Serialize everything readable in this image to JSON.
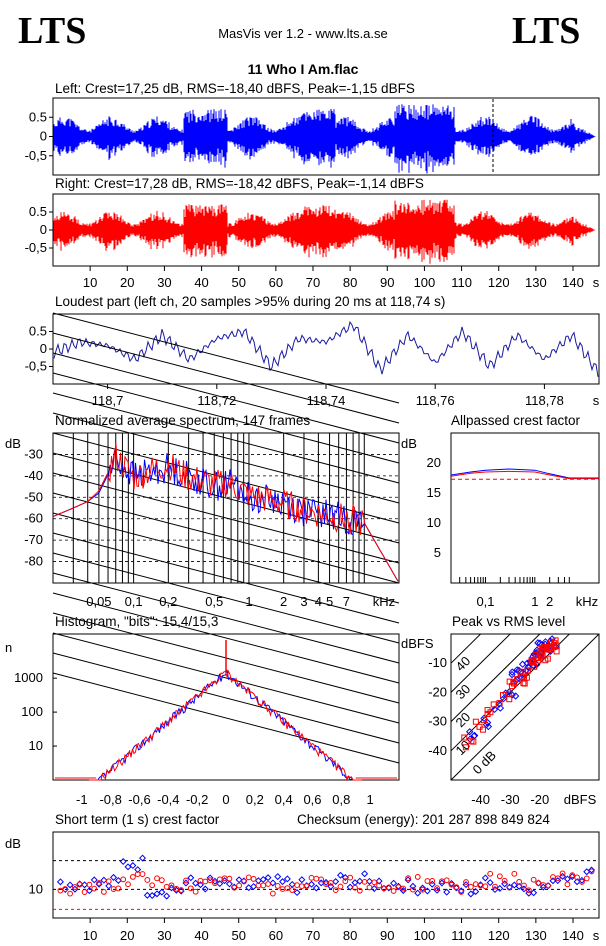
{
  "header": {
    "brand_left": "LTS",
    "brand_right": "LTS",
    "app_line": "MasVis ver 1.2 - www.lts.a.se",
    "file_title": "11 Who I Am.flac"
  },
  "colors": {
    "left": "#0000ff",
    "right": "#ff0000"
  },
  "panels": {
    "left_wave": {
      "label": "Left: Crest=17,25 dB, RMS=-18,40 dBFS, Peak=-1,15 dBFS",
      "y_ticks": [
        "0.5",
        "0",
        "-0,5"
      ]
    },
    "right_wave": {
      "label": "Right: Crest=17,28 dB, RMS=-18,42 dBFS, Peak=-1,14 dBFS",
      "y_ticks": [
        "0.5",
        "0",
        "-0,5"
      ]
    },
    "time_axis": {
      "ticks": [
        "10",
        "20",
        "30",
        "40",
        "50",
        "60",
        "70",
        "80",
        "90",
        "100",
        "110",
        "120",
        "130",
        "140"
      ],
      "unit": "s"
    },
    "loudest": {
      "label": "Loudest part (left  ch, 20 samples >95% during 20 ms at 118,74 s)",
      "y_ticks": [
        "0.5",
        "0",
        "-0,5"
      ],
      "x_ticks": [
        "118,7",
        "118,72",
        "118,74",
        "118,76",
        "118,78"
      ],
      "unit": "s"
    },
    "spectrum": {
      "label": "Normalized average spectrum, 147 frames",
      "ylabel": "dB",
      "y_ticks": [
        "-30",
        "-40",
        "-50",
        "-60",
        "-70",
        "-80"
      ],
      "x_ticks": [
        "0,05",
        "0,1",
        "0,2",
        "0,5",
        "1",
        "2",
        "3",
        "4",
        "5",
        "7"
      ],
      "unit": "kHz"
    },
    "allpass": {
      "label": "Allpassed crest factor",
      "ylabel": "dB",
      "y_ticks": [
        "20",
        "15",
        "10",
        "5"
      ],
      "x_ticks": [
        "0,1",
        "1",
        "2"
      ],
      "unit": "kHz"
    },
    "histogram": {
      "label": "Histogram, \"bits\": 15,4/15,3",
      "ylabel": "n",
      "y_ticks": [
        "1000",
        "100",
        "10"
      ],
      "x_ticks": [
        "-1",
        "-0,8",
        "-0,6",
        "-0,4",
        "-0,2",
        "0",
        "0,2",
        "0,4",
        "0,6",
        "0,8",
        "1"
      ]
    },
    "peak_rms": {
      "label": "Peak vs RMS level",
      "ylabel": "dBFS",
      "y_ticks": [
        "-10",
        "-20",
        "-30",
        "-40"
      ],
      "x_ticks": [
        "-40",
        "-30",
        "-20"
      ],
      "unit": "dBFS",
      "diag_labels": [
        "40",
        "30",
        "20",
        "10",
        "0 dB"
      ]
    },
    "crest": {
      "label": "Short term (1 s) crest factor",
      "checksum": "Checksum (energy):  201 287 898 849 824",
      "ylabel": "dB",
      "y_ticks": [
        "10"
      ],
      "x_ticks": [
        "10",
        "20",
        "30",
        "40",
        "50",
        "60",
        "70",
        "80",
        "90",
        "100",
        "110",
        "120",
        "130",
        "140"
      ],
      "unit": "s"
    }
  },
  "chart_data": [
    {
      "type": "area",
      "title": "Left: Crest=17,25 dB, RMS=-18,40 dBFS, Peak=-1,15 dBFS",
      "xlim": [
        0,
        147
      ],
      "ylim": [
        -1,
        1
      ],
      "y_ticks": [
        0.5,
        0,
        -0.5
      ],
      "peak_marker_s": 118.74
    },
    {
      "type": "area",
      "title": "Right: Crest=17,28 dB, RMS=-18,42 dBFS, Peak=-1,14 dBFS",
      "xlim": [
        0,
        147
      ],
      "ylim": [
        -1,
        1
      ],
      "y_ticks": [
        0.5,
        0,
        -0.5
      ]
    },
    {
      "type": "line",
      "title": "Loudest part (left  ch, 20 samples >95% during 20 ms at 118,74 s)",
      "xlim": [
        118.69,
        118.79
      ],
      "ylim": [
        -1,
        1
      ],
      "x": [
        118.69,
        118.695,
        118.7,
        118.705,
        118.71,
        118.715,
        118.72,
        118.725,
        118.73,
        118.735,
        118.74,
        118.745,
        118.75,
        118.755,
        118.76,
        118.765,
        118.77,
        118.775,
        118.78,
        118.785,
        118.79
      ],
      "y": [
        -0.1,
        0.2,
        0.1,
        -0.3,
        0.4,
        -0.3,
        0.3,
        0.5,
        -0.5,
        0.3,
        0.2,
        0.7,
        -0.6,
        0.4,
        -0.4,
        0.5,
        -0.5,
        0.4,
        -0.3,
        0.4,
        -0.7
      ]
    },
    {
      "type": "line",
      "title": "Normalized average spectrum, 147 frames",
      "ylabel": "dB",
      "xlabel": "kHz",
      "ylim": [
        -90,
        -20
      ],
      "xlim_khz": [
        0.02,
        20
      ],
      "series": [
        {
          "x_khz": [
            0.02,
            0.03,
            0.04,
            0.05,
            0.07,
            0.1,
            0.15,
            0.2,
            0.3,
            0.5,
            0.7,
            1,
            2,
            3,
            5,
            7,
            10,
            20
          ],
          "y": [
            -59,
            -55,
            -52,
            -48,
            -32,
            -40,
            -38,
            -36,
            -40,
            -45,
            -43,
            -50,
            -52,
            -57,
            -58,
            -60,
            -62,
            -90
          ]
        },
        {
          "x_khz": [
            0.02,
            0.03,
            0.04,
            0.05,
            0.07,
            0.1,
            0.15,
            0.2,
            0.3,
            0.5,
            0.7,
            1,
            2,
            3,
            5,
            7,
            10,
            20
          ],
          "y": [
            -59,
            -55,
            -52,
            -47,
            -31,
            -41,
            -37,
            -35,
            -41,
            -44,
            -44,
            -49,
            -53,
            -56,
            -59,
            -60,
            -62,
            -90
          ]
        }
      ]
    },
    {
      "type": "line",
      "title": "Allpassed crest factor",
      "ylabel": "dB",
      "xlabel": "kHz",
      "ylim": [
        0,
        25
      ],
      "series": [
        {
          "x_khz": [
            0.02,
            0.05,
            0.1,
            0.3,
            1,
            2,
            5,
            20
          ],
          "y": [
            18,
            18.5,
            18.8,
            19,
            18.8,
            18.2,
            17.5,
            17.5
          ]
        },
        {
          "x_khz": [
            0.02,
            0.05,
            0.1,
            0.3,
            1,
            2,
            5,
            20
          ],
          "y": [
            17.8,
            18.3,
            18.5,
            18.6,
            18.5,
            18,
            17.4,
            17.4
          ]
        }
      ],
      "reference_db": 17.3
    },
    {
      "type": "line",
      "title": "Histogram, \"bits\": 15,4/15,3",
      "ylabel": "n",
      "xlim": [
        -1.2,
        1.2
      ],
      "log_y": true,
      "ylim": [
        1,
        20000
      ],
      "x": [
        -0.9,
        -0.8,
        -0.6,
        -0.4,
        -0.2,
        0,
        0.2,
        0.4,
        0.6,
        0.8,
        0.9
      ],
      "y": [
        1,
        4,
        15,
        60,
        300,
        1500,
        300,
        60,
        15,
        4,
        1
      ]
    },
    {
      "type": "scatter",
      "title": "Peak vs RMS level",
      "ylabel": "dBFS",
      "xlabel": "dBFS",
      "xlim": [
        -50,
        0
      ],
      "ylim": [
        -50,
        0
      ],
      "series": [
        {
          "x": [
            -42,
            -38,
            -34,
            -30,
            -28,
            -26,
            -25,
            -24,
            -22,
            -21,
            -20,
            -19,
            -18,
            -17,
            -16
          ],
          "y": [
            -35,
            -30,
            -24,
            -20,
            -15,
            -14,
            -12,
            -10,
            -9,
            -8,
            -6,
            -5,
            -5,
            -4,
            -3
          ]
        },
        {
          "x": [
            -44,
            -40,
            -36,
            -32,
            -29,
            -27,
            -25,
            -23,
            -22,
            -20,
            -19,
            -18,
            -17,
            -16,
            -15
          ],
          "y": [
            -37,
            -31,
            -26,
            -22,
            -17,
            -15,
            -13,
            -11,
            -9,
            -8,
            -7,
            -6,
            -4,
            -4,
            -3
          ]
        }
      ]
    },
    {
      "type": "scatter",
      "title": "Short term (1 s) crest factor",
      "ylabel": "dB",
      "xlim": [
        0,
        147
      ],
      "ylim": [
        0,
        30
      ],
      "series": [
        {
          "x": [
            5,
            18,
            25,
            35,
            45,
            55,
            65,
            75,
            85,
            95,
            105,
            115,
            125,
            135,
            140
          ],
          "y": [
            12,
            19,
            10,
            12,
            11,
            12,
            11,
            13,
            12,
            11,
            10,
            12,
            11,
            15,
            11
          ]
        },
        {
          "x": [
            5,
            18,
            25,
            35,
            45,
            55,
            65,
            75,
            85,
            95,
            105,
            115,
            125,
            135,
            140
          ],
          "y": [
            11,
            13,
            12,
            11,
            12,
            11,
            13,
            12,
            11,
            12,
            11,
            13,
            12,
            14,
            10
          ]
        }
      ]
    }
  ]
}
